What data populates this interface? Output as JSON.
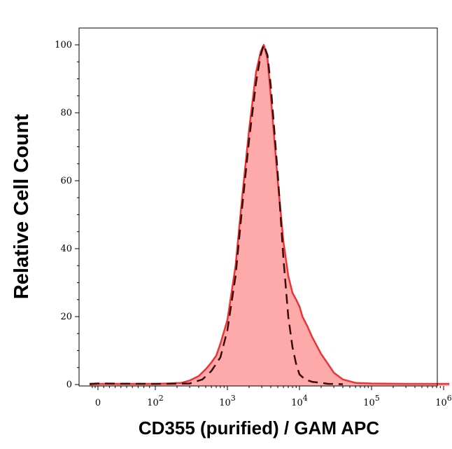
{
  "chart_data": {
    "type": "area",
    "title": "",
    "xlabel": "CD355 (purified) / GAM APC",
    "ylabel": "Relative Cell Count",
    "x_scale": "biexponential",
    "xlim": [
      -30,
      1200000
    ],
    "ylim": [
      0,
      105
    ],
    "grid": false,
    "x_ticks": [
      {
        "value": 0,
        "label": "0"
      },
      {
        "value": 100,
        "base": "10",
        "exp": "2"
      },
      {
        "value": 1000,
        "base": "10",
        "exp": "3"
      },
      {
        "value": 10000,
        "base": "10",
        "exp": "4"
      },
      {
        "value": 100000,
        "base": "10",
        "exp": "5"
      },
      {
        "value": 1000000,
        "base": "10",
        "exp": "6"
      }
    ],
    "y_ticks": [
      0,
      20,
      40,
      60,
      80,
      100
    ],
    "colors": {
      "sample_line": "#ee3333",
      "sample_fill": "#ffaaaa",
      "control_line": "#3a0a0a"
    },
    "series": [
      {
        "role": "sample",
        "style": "filled-solid",
        "points": [
          [
            -30,
            0
          ],
          [
            0,
            0.2
          ],
          [
            100,
            0.2
          ],
          [
            150,
            0.3
          ],
          [
            230,
            0.5
          ],
          [
            300,
            1.2
          ],
          [
            400,
            2.5
          ],
          [
            500,
            4.5
          ],
          [
            600,
            6.5
          ],
          [
            700,
            8.5
          ],
          [
            800,
            12
          ],
          [
            1000,
            19
          ],
          [
            1300,
            35
          ],
          [
            1600,
            55
          ],
          [
            2000,
            75
          ],
          [
            2500,
            92
          ],
          [
            2900,
            98
          ],
          [
            3200,
            100
          ],
          [
            3600,
            96
          ],
          [
            4000,
            85
          ],
          [
            5000,
            60
          ],
          [
            6000,
            42
          ],
          [
            7000,
            32
          ],
          [
            8000,
            27
          ],
          [
            9000,
            25
          ],
          [
            10000,
            23
          ],
          [
            11000,
            20
          ],
          [
            13000,
            17
          ],
          [
            15000,
            14
          ],
          [
            20000,
            9
          ],
          [
            25000,
            6
          ],
          [
            30000,
            3.5
          ],
          [
            40000,
            1.5
          ],
          [
            60000,
            0.5
          ],
          [
            100000,
            0.3
          ],
          [
            300000,
            0.2
          ],
          [
            1000000,
            0.2
          ],
          [
            1200000,
            0.2
          ]
        ]
      },
      {
        "role": "control",
        "style": "dashed",
        "points": [
          [
            -30,
            0.2
          ],
          [
            0,
            0.3
          ],
          [
            100,
            0.2
          ],
          [
            300,
            0.3
          ],
          [
            450,
            1.5
          ],
          [
            600,
            4
          ],
          [
            800,
            8
          ],
          [
            1000,
            16
          ],
          [
            1300,
            32
          ],
          [
            1600,
            52
          ],
          [
            2000,
            72
          ],
          [
            2500,
            89
          ],
          [
            2900,
            97
          ],
          [
            3200,
            100
          ],
          [
            3600,
            97
          ],
          [
            4000,
            88
          ],
          [
            5000,
            62
          ],
          [
            6000,
            37
          ],
          [
            7000,
            20
          ],
          [
            8000,
            11
          ],
          [
            9000,
            6
          ],
          [
            10000,
            3
          ],
          [
            12000,
            1.5
          ],
          [
            15000,
            0.8
          ],
          [
            20000,
            0.5
          ],
          [
            25000,
            0.2
          ],
          [
            40000,
            0.1
          ]
        ]
      }
    ]
  }
}
